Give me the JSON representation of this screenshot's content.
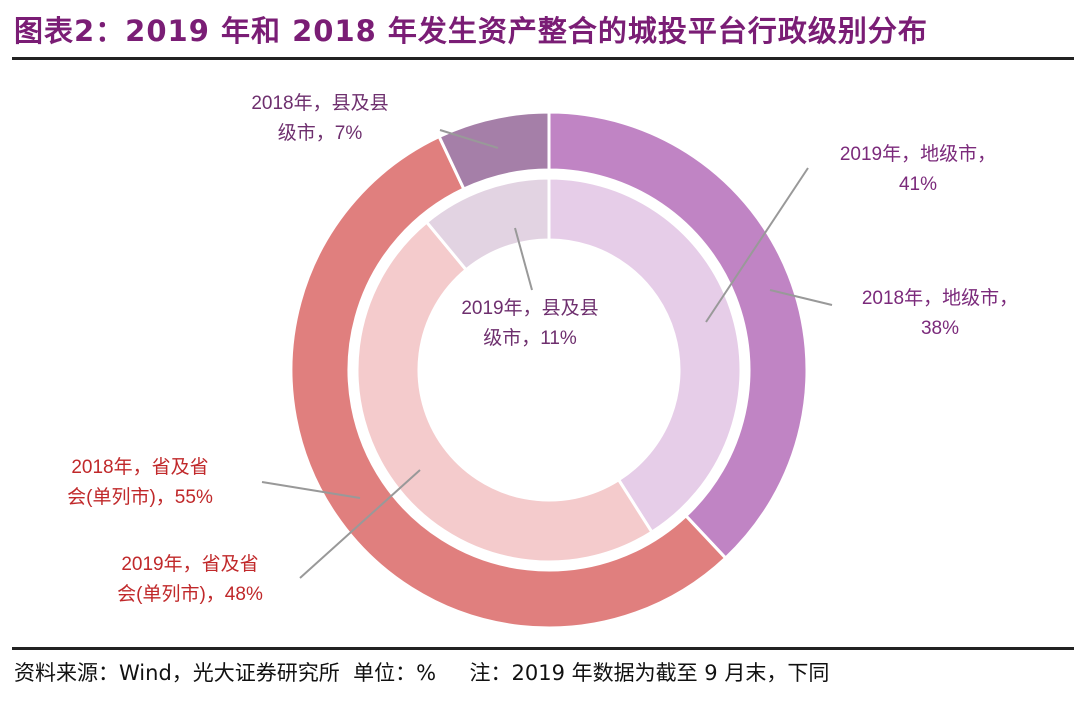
{
  "title": "图表2：2019 年和 2018 年发生资产整合的城投平台行政级别分布",
  "footer": {
    "source": "资料来源：Wind，光大证券研究所  单位：%",
    "note": "注：2019 年数据为截至 9 月末，下同"
  },
  "chart_data": {
    "type": "pie",
    "variant": "nested donut",
    "categories": [
      "地级市",
      "省及省会(单列市)",
      "县及县级市"
    ],
    "series": [
      {
        "name": "2018年",
        "ring": "outer",
        "values": [
          38,
          55,
          7
        ],
        "colors": [
          "#c084c4",
          "#e07f7e",
          "#a57fa8"
        ],
        "labels": [
          [
            "2018年，地级市，",
            "38%"
          ],
          [
            "2018年，省及省",
            "会(单列市)，55%"
          ],
          [
            "2018年，县及县",
            "级市，7%"
          ]
        ]
      },
      {
        "name": "2019年",
        "ring": "inner",
        "values": [
          41,
          48,
          11
        ],
        "colors": [
          "#e6cde8",
          "#f4cbcc",
          "#e2d3e2"
        ],
        "labels": [
          [
            "2019年，地级市，",
            "41%"
          ],
          [
            "2019年，省及省",
            "会(单列市)，48%"
          ],
          [
            "2019年，县及县",
            "级市，11%"
          ]
        ]
      }
    ],
    "label_colors": [
      "#7b2a7b",
      "#c0282a",
      "#6e2f6e"
    ]
  }
}
